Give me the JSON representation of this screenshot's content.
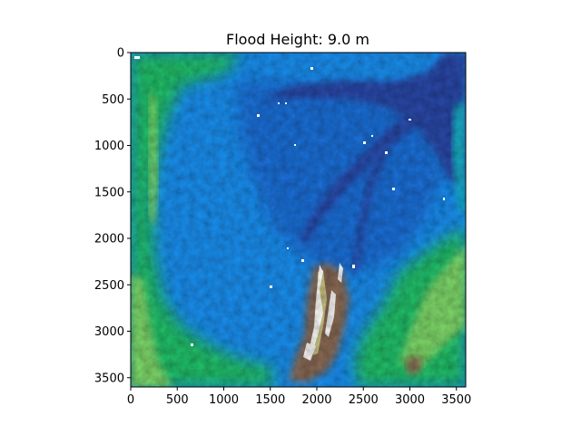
{
  "chart_data": {
    "type": "heatmap",
    "title": "Flood Height: 9.0 m",
    "xlabel": "",
    "ylabel": "",
    "xlim": [
      0,
      3600
    ],
    "ylim": [
      3600,
      0
    ],
    "x_ticks": [
      "0",
      "500",
      "1000",
      "1500",
      "2000",
      "2500",
      "3000",
      "3500"
    ],
    "y_ticks": [
      "0",
      "500",
      "1000",
      "1500",
      "2000",
      "2500",
      "3000",
      "3500"
    ],
    "colormap": "terrain",
    "masked_color": "#ffffff",
    "grid": false,
    "colors": {
      "deep": "#2a4aa8",
      "water": "#1f70d8",
      "shallow": "#1a90f0",
      "cyan": "#13b6c8",
      "green": "#22c06a",
      "light_green": "#7fd86a",
      "yellow": "#d8d890",
      "brown": "#8a6a55",
      "peak": "#e8e2dc"
    }
  }
}
